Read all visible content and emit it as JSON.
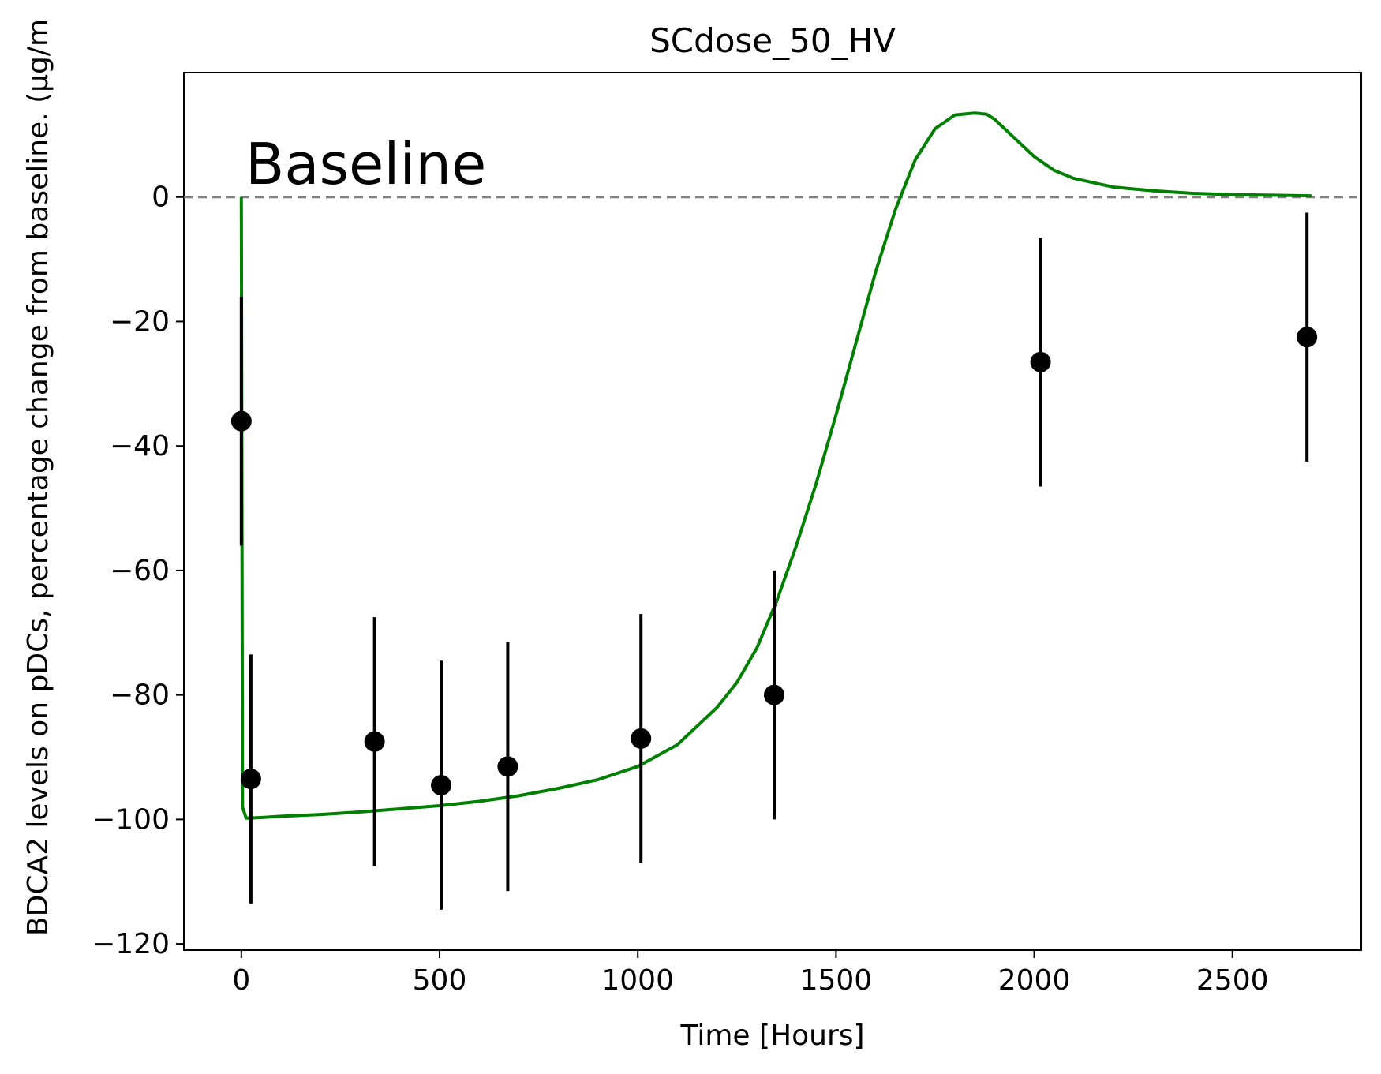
{
  "chart_data": {
    "type": "scatter",
    "title": "SCdose_50_HV",
    "xlabel": "Time [Hours]",
    "ylabel": "BDCA2 levels on pDCs, percentage change from baseline. (µg/m",
    "xlim": [
      -145,
      2825
    ],
    "ylim": [
      -121,
      20
    ],
    "x_ticks": [
      0,
      500,
      1000,
      1500,
      2000,
      2500
    ],
    "y_ticks": [
      0,
      -20,
      -40,
      -60,
      -80,
      -100,
      -120
    ],
    "x_tick_labels": [
      "0",
      "500",
      "1000",
      "1500",
      "2000",
      "2500"
    ],
    "y_tick_labels": [
      "0",
      "−20",
      "−40",
      "−60",
      "−80",
      "−100",
      "−120"
    ],
    "grid": false,
    "baseline": {
      "label": "Baseline",
      "y": 0,
      "color": "#808080",
      "style": "dashed"
    },
    "observed": {
      "color": "#000000",
      "points": [
        {
          "x": 0,
          "y": -36,
          "err": 20
        },
        {
          "x": 24,
          "y": -93.5,
          "err": 20
        },
        {
          "x": 336,
          "y": -87.5,
          "err": 20
        },
        {
          "x": 504,
          "y": -94.5,
          "err": 20
        },
        {
          "x": 672,
          "y": -91.5,
          "err": 20
        },
        {
          "x": 1008,
          "y": -87,
          "err": 20
        },
        {
          "x": 1344,
          "y": -80,
          "err": 20
        },
        {
          "x": 2016,
          "y": -26.5,
          "err": 20
        },
        {
          "x": 2688,
          "y": -22.5,
          "err": 20
        }
      ]
    },
    "model": {
      "color": "#008000",
      "x": [
        0,
        3,
        12,
        50,
        100,
        200,
        300,
        400,
        500,
        600,
        700,
        800,
        900,
        1000,
        1100,
        1200,
        1250,
        1300,
        1350,
        1400,
        1450,
        1500,
        1550,
        1600,
        1650,
        1700,
        1750,
        1800,
        1850,
        1880,
        1900,
        1950,
        2000,
        2050,
        2100,
        2200,
        2300,
        2400,
        2500,
        2600,
        2700
      ],
      "y": [
        0,
        -98,
        -99.8,
        -99.7,
        -99.5,
        -99.2,
        -98.8,
        -98.3,
        -97.8,
        -97.1,
        -96.2,
        -95.0,
        -93.6,
        -91.5,
        -88.0,
        -82.0,
        -78.0,
        -72.5,
        -65.0,
        -56.0,
        -46.0,
        -35.0,
        -23.5,
        -12.0,
        -2.0,
        6.0,
        11.0,
        13.2,
        13.5,
        13.3,
        12.5,
        9.5,
        6.5,
        4.3,
        3.0,
        1.6,
        1.0,
        0.6,
        0.4,
        0.3,
        0.2
      ]
    }
  }
}
